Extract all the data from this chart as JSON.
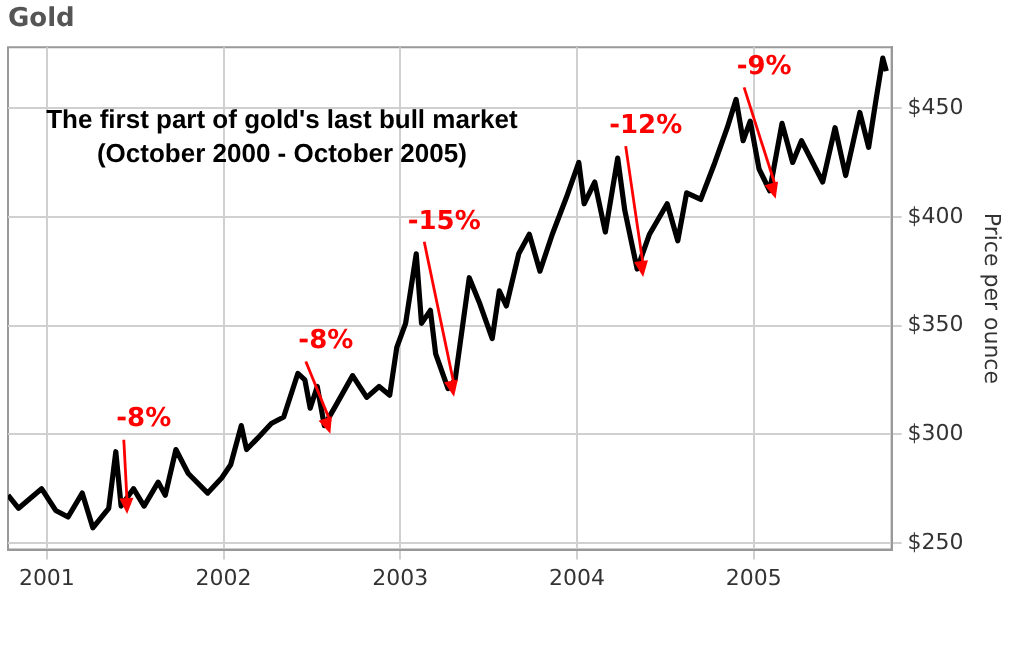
{
  "chart_data": {
    "type": "line",
    "title": "Gold",
    "ylabel": "Price per ounce",
    "x": [
      2000.78,
      2000.84,
      2000.97,
      2001.05,
      2001.12,
      2001.2,
      2001.26,
      2001.35,
      2001.39,
      2001.42,
      2001.49,
      2001.55,
      2001.63,
      2001.67,
      2001.73,
      2001.8,
      2001.91,
      2001.99,
      2002.04,
      2002.1,
      2002.13,
      2002.19,
      2002.27,
      2002.34,
      2002.42,
      2002.46,
      2002.49,
      2002.53,
      2002.57,
      2002.64,
      2002.73,
      2002.81,
      2002.88,
      2002.94,
      2002.98,
      2003.03,
      2003.09,
      2003.12,
      2003.17,
      2003.2,
      2003.27,
      2003.31,
      2003.39,
      2003.45,
      2003.52,
      2003.56,
      2003.6,
      2003.67,
      2003.73,
      2003.79,
      2003.86,
      2003.94,
      2004.01,
      2004.04,
      2004.1,
      2004.16,
      2004.23,
      2004.27,
      2004.34,
      2004.41,
      2004.51,
      2004.57,
      2004.62,
      2004.7,
      2004.78,
      2004.85,
      2004.9,
      2004.94,
      2004.98,
      2005.03,
      2005.09,
      2005.16,
      2005.22,
      2005.27,
      2005.39,
      2005.46,
      2005.52,
      2005.6,
      2005.65,
      2005.69,
      2005.73,
      2005.75
    ],
    "series": [
      {
        "color": "#000000",
        "values": [
          272,
          266,
          275,
          265,
          262,
          273,
          257,
          266,
          292,
          267,
          275,
          267,
          278,
          272,
          293,
          282,
          273,
          280,
          286,
          304,
          293,
          298,
          305,
          308,
          328,
          325,
          312,
          322,
          304,
          314,
          327,
          317,
          322,
          318,
          340,
          351,
          383,
          351,
          357,
          337,
          321,
          325,
          372,
          360,
          344,
          366,
          359,
          383,
          392,
          375,
          392,
          409,
          425,
          406,
          416,
          393,
          427,
          403,
          376,
          392,
          406,
          389,
          411,
          408,
          425,
          441,
          454,
          435,
          444,
          422,
          412,
          443,
          425,
          435,
          416,
          441,
          419,
          448,
          432,
          453,
          473,
          467
        ]
      }
    ],
    "annotations": [
      "The first part of gold's last bull market",
      "(October 2000 - October 2005)",
      {
        "text": "-8%",
        "x": 2001.39,
        "y": 292
      },
      {
        "text": "-8%",
        "x": 2002.42,
        "y": 328
      },
      {
        "text": "-15%",
        "x": 2003.09,
        "y": 383
      },
      {
        "text": "-12%",
        "x": 2004.23,
        "y": 427
      },
      {
        "text": "-9%",
        "x": 2004.9,
        "y": 454
      }
    ],
    "xlim": [
      2000.78,
      2005.78
    ],
    "xticks": [
      2001,
      2002,
      2003,
      2004,
      2005
    ],
    "ylim": [
      247,
      478
    ],
    "yticks": [
      {
        "value": 250,
        "label": "$250"
      },
      {
        "value": 300,
        "label": "$300"
      },
      {
        "value": 350,
        "label": "$350"
      },
      {
        "value": 400,
        "label": "$400"
      },
      {
        "value": 450,
        "label": "$450"
      }
    ],
    "grid": true,
    "legend": false,
    "marker": "none",
    "line_style": "solid"
  }
}
